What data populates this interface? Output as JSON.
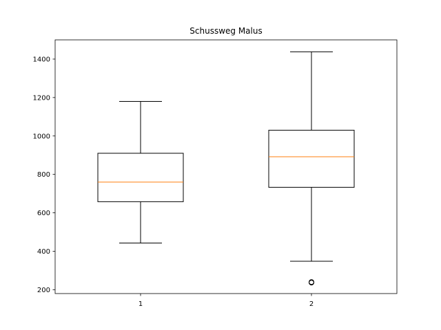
{
  "chart_data": {
    "type": "box",
    "title": "Schussweg Malus",
    "xlabel": "",
    "ylabel": "",
    "categories": [
      "1",
      "2"
    ],
    "ylim": [
      180,
      1500
    ],
    "yticks": [
      200,
      400,
      600,
      800,
      1000,
      1200,
      1400
    ],
    "grid": false,
    "boxes": [
      {
        "label": "1",
        "whisker_low": 443,
        "q1": 658,
        "median": 760,
        "q3": 910,
        "whisker_high": 1180,
        "outliers": []
      },
      {
        "label": "2",
        "whisker_low": 348,
        "q1": 733,
        "median": 892,
        "q3": 1030,
        "whisker_high": 1438,
        "outliers": [
          237,
          240
        ]
      }
    ],
    "colors": {
      "box": "#000000",
      "median": "#ff7f0e",
      "outlier": "#000000"
    }
  }
}
